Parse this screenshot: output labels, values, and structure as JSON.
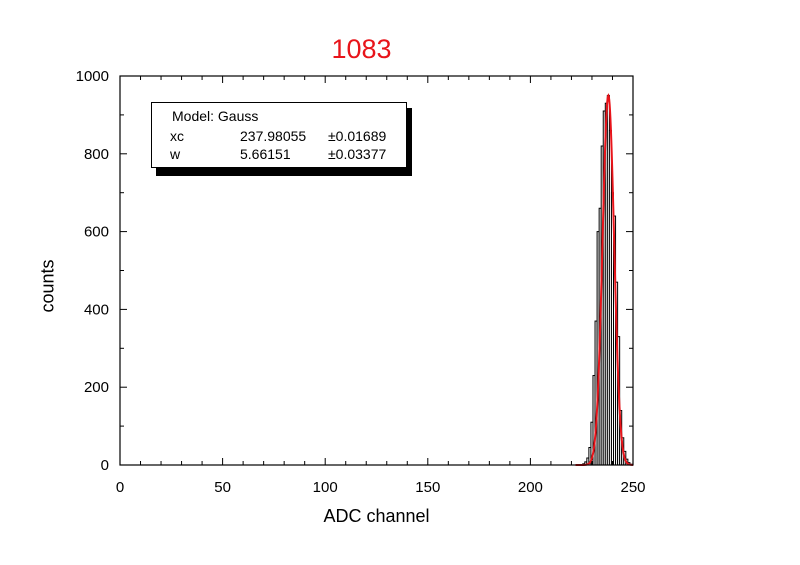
{
  "chart_data": {
    "type": "bar",
    "title": "1083",
    "title_color": "#e8141a",
    "xlabel": "ADC channel",
    "ylabel": "counts",
    "xlim": [
      0,
      250
    ],
    "ylim": [
      0,
      1000
    ],
    "x_ticks": [
      "0",
      "50",
      "100",
      "150",
      "200",
      "250"
    ],
    "y_ticks": [
      "0",
      "200",
      "400",
      "600",
      "800",
      "1000"
    ],
    "grid": false,
    "bar_color": "#000000",
    "fit_color": "#e8141a",
    "series": [
      {
        "x": [
          226,
          227,
          228,
          229,
          230,
          231,
          232,
          233,
          234,
          235,
          236,
          237,
          238,
          239,
          240,
          241,
          242,
          243,
          244,
          245,
          246,
          247,
          248,
          249
        ],
        "values": [
          3,
          8,
          18,
          45,
          110,
          230,
          370,
          600,
          660,
          820,
          910,
          930,
          950,
          860,
          700,
          640,
          470,
          330,
          140,
          70,
          35,
          15,
          6,
          2
        ]
      }
    ],
    "fit": {
      "model": "Gauss",
      "xc": 237.98055,
      "w": 5.66151,
      "peak": 950
    },
    "legend": {
      "model_label": "Model: Gauss",
      "position": "top-left",
      "rows": [
        {
          "name": "xc",
          "value": "237.98055",
          "error": "±0.01689"
        },
        {
          "name": "w",
          "value": "5.66151",
          "error": "±0.03377"
        }
      ]
    }
  }
}
